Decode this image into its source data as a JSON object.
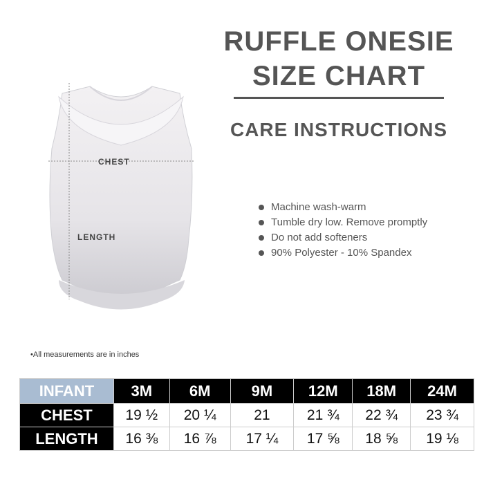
{
  "title_line1": "RUFFLE ONESIE",
  "title_line2": "SIZE CHART",
  "care_heading": "CARE INSTRUCTIONS",
  "care_items": [
    "Machine wash-warm",
    "Tumble dry low. Remove promptly",
    "Do not add softeners",
    "90% Polyester - 10% Spandex"
  ],
  "garment_labels": {
    "chest": "CHEST",
    "length": "LENGTH"
  },
  "note": "•All measurements are in inches",
  "table": {
    "header": [
      "INFANT",
      "3M",
      "6M",
      "9M",
      "12M",
      "18M",
      "24M"
    ],
    "rows": [
      {
        "label": "CHEST",
        "values": [
          "19 ½",
          "20 ¼",
          "21",
          "21 ¾",
          "22 ¾",
          "23 ¾"
        ]
      },
      {
        "label": "LENGTH",
        "values": [
          "16 ⅜",
          "16 ⅞",
          "17 ¼",
          "17 ⅝",
          "18 ⅝",
          "19 ⅛"
        ]
      }
    ]
  },
  "colors": {
    "infant_cell": "#a9bcd2",
    "header_bg": "#000000",
    "text_gray": "#555555"
  }
}
